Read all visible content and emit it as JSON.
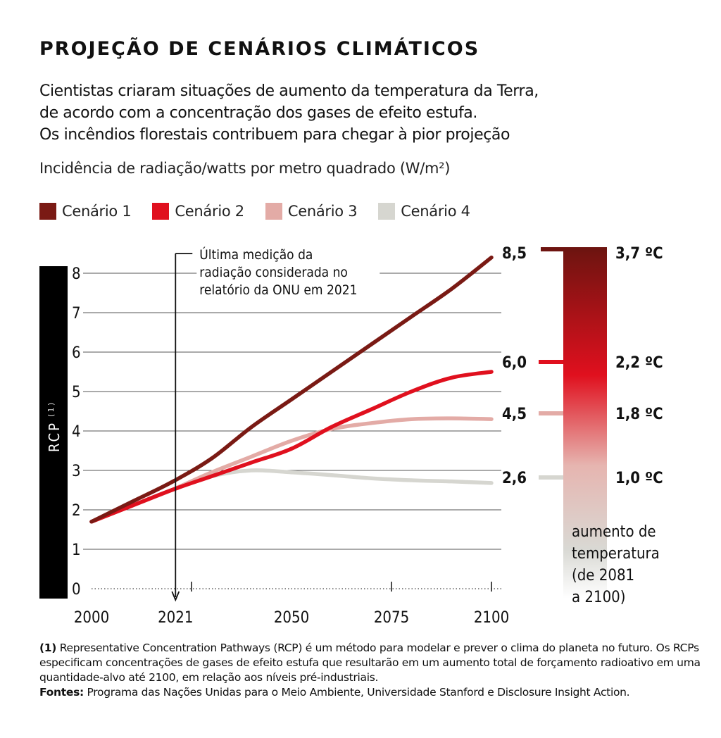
{
  "title": "PROJEÇÃO DE CENÁRIOS CLIMÁTICOS",
  "subtitle_lines": [
    "Cientistas criaram situações de aumento da temperatura da Terra,",
    "de acordo com a concentração dos gases de efeito estufa.",
    "Os incêndios florestais contribuem para chegar à pior projeção"
  ],
  "unit_label": "Incidência de radiação/watts por metro quadrado (W/m²)",
  "colors": {
    "cenario1": "#7a1a14",
    "cenario2": "#e0101e",
    "cenario3": "#e3aba6",
    "cenario4": "#d6d6d0"
  },
  "annotation_lines": [
    "Última medição da",
    "radiação considerada no",
    "relatório da ONU em 2021"
  ],
  "temperature_scale": {
    "caption_lines": [
      "aumento de",
      "temperatura",
      "(de 2081",
      "a 2100)"
    ]
  },
  "chart_data": {
    "type": "line",
    "ylabel": "RCP",
    "ylabel_sup": "(1)",
    "xlim": [
      2000,
      2100
    ],
    "ylim": [
      0,
      8
    ],
    "yticks": [
      "0",
      "1",
      "2",
      "3",
      "4",
      "5",
      "6",
      "7",
      "8"
    ],
    "xticks": [
      "2000",
      "2021",
      "2050",
      "2075",
      "2100"
    ],
    "grid": true,
    "legend_position": "top",
    "series": [
      {
        "name": "Cenário 1",
        "x": [
          2000,
          2010,
          2020,
          2030,
          2040,
          2050,
          2060,
          2070,
          2080,
          2090,
          2100
        ],
        "values": [
          1.7,
          2.2,
          2.7,
          3.3,
          4.1,
          4.8,
          5.5,
          6.2,
          6.9,
          7.6,
          8.4
        ],
        "end_label": "8,5",
        "temperature": "3,7 ºC"
      },
      {
        "name": "Cenário 2",
        "x": [
          2000,
          2010,
          2020,
          2030,
          2040,
          2050,
          2060,
          2070,
          2080,
          2090,
          2100
        ],
        "values": [
          1.7,
          2.1,
          2.5,
          2.85,
          3.2,
          3.55,
          4.1,
          4.55,
          5.0,
          5.35,
          5.5
        ],
        "end_label": "6,0",
        "temperature": "2,2 ºC"
      },
      {
        "name": "Cenário 3",
        "x": [
          2000,
          2010,
          2020,
          2030,
          2040,
          2050,
          2060,
          2070,
          2080,
          2090,
          2100
        ],
        "values": [
          1.7,
          2.1,
          2.5,
          2.95,
          3.35,
          3.75,
          4.05,
          4.2,
          4.3,
          4.32,
          4.3
        ],
        "end_label": "4,5",
        "temperature": "1,8 ºC"
      },
      {
        "name": "Cenário 4",
        "x": [
          2000,
          2010,
          2020,
          2030,
          2040,
          2050,
          2060,
          2070,
          2080,
          2090,
          2100
        ],
        "values": [
          1.7,
          2.1,
          2.5,
          2.85,
          3.0,
          2.95,
          2.88,
          2.8,
          2.75,
          2.72,
          2.68
        ],
        "end_label": "2,6",
        "temperature": "1,0 ºC"
      }
    ]
  },
  "footnote": {
    "marker": "(1)",
    "text": " Representative Concentration Pathways (RCP) é um método para modelar e prever o clima do planeta no futuro. Os RCPs especificam concentrações de gases de efeito estufa que resultarão em um aumento total de forçamento radioativo em uma quantidade-alvo até 2100, em relação aos níveis pré-industriais.",
    "sources_label": "Fontes:",
    "sources_text": " Programa das Nações Unidas para o Meio Ambiente, Universidade Stanford e Disclosure Insight Action."
  }
}
